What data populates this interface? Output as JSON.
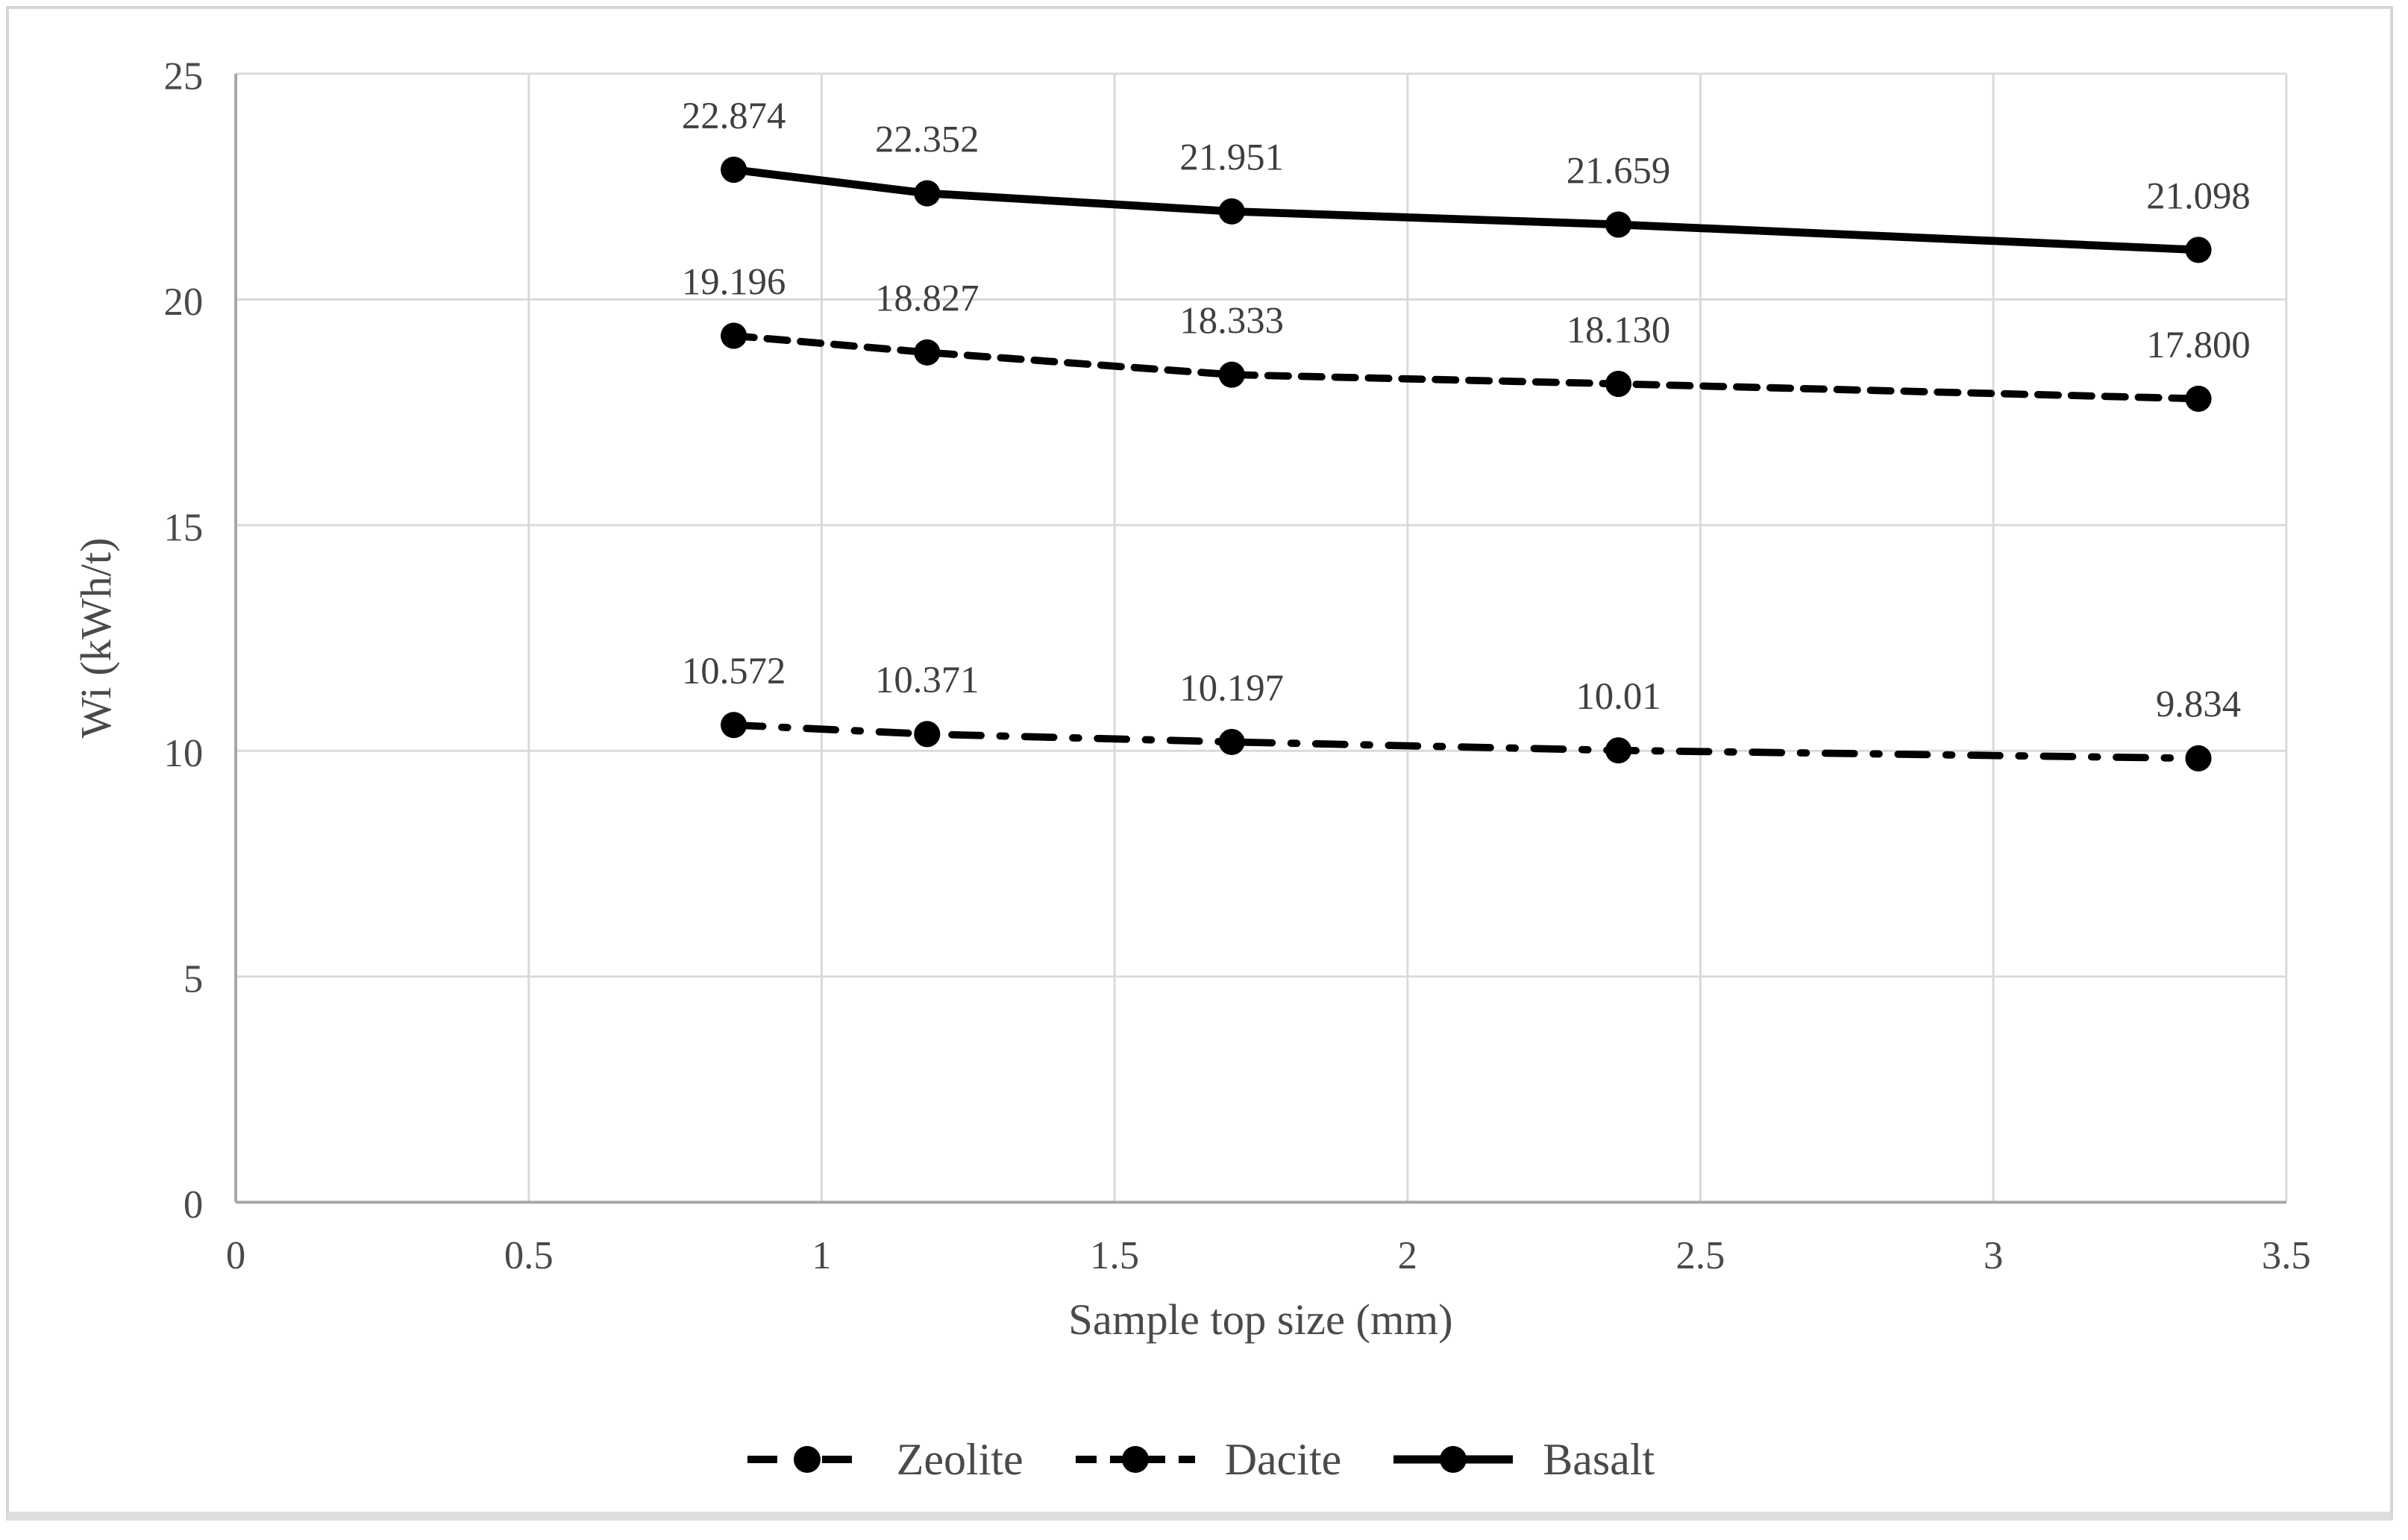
{
  "chart_data": {
    "type": "line",
    "title": "",
    "xlabel": "Sample top size (mm)",
    "ylabel": "Wi (kWh/t)",
    "xlim": [
      0,
      3.5
    ],
    "ylim": [
      0,
      25
    ],
    "grid": true,
    "legend_position": "bottom",
    "xticks": {
      "values": [
        0,
        0.5,
        1,
        1.5,
        2,
        2.5,
        3,
        3.5
      ],
      "labels": [
        "0",
        "0.5",
        "1",
        "1.5",
        "2",
        "2.5",
        "3",
        "3.5"
      ]
    },
    "yticks": {
      "values": [
        0,
        5,
        10,
        15,
        20,
        25
      ],
      "labels": [
        "0",
        "5",
        "10",
        "15",
        "20",
        "25"
      ]
    },
    "x": [
      0.85,
      1.18,
      1.7,
      2.36,
      3.35
    ],
    "series": [
      {
        "name": "Zeolite",
        "style": "dashdot",
        "color": "#000000",
        "values": [
          10.572,
          10.371,
          10.197,
          10.01,
          9.834
        ],
        "labels": [
          "10.572",
          "10.371",
          "10.197",
          "10.01",
          "9.834"
        ]
      },
      {
        "name": "Dacite",
        "style": "dashed",
        "color": "#000000",
        "values": [
          19.196,
          18.827,
          18.333,
          18.13,
          17.8
        ],
        "labels": [
          "19.196",
          "18.827",
          "18.333",
          "18.130",
          "17.800"
        ]
      },
      {
        "name": "Basalt",
        "style": "solid",
        "color": "#000000",
        "values": [
          22.874,
          22.352,
          21.951,
          21.659,
          21.098
        ],
        "labels": [
          "22.874",
          "22.352",
          "21.951",
          "21.659",
          "21.098"
        ]
      }
    ],
    "colors": {
      "grid": "#d9d9d9",
      "axis": "#a6a6a6",
      "tick_text": "#4a4a4a",
      "axis_title_text": "#4a4a4a",
      "data_label_text": "#3f3f3f",
      "marker": "#000000"
    }
  }
}
